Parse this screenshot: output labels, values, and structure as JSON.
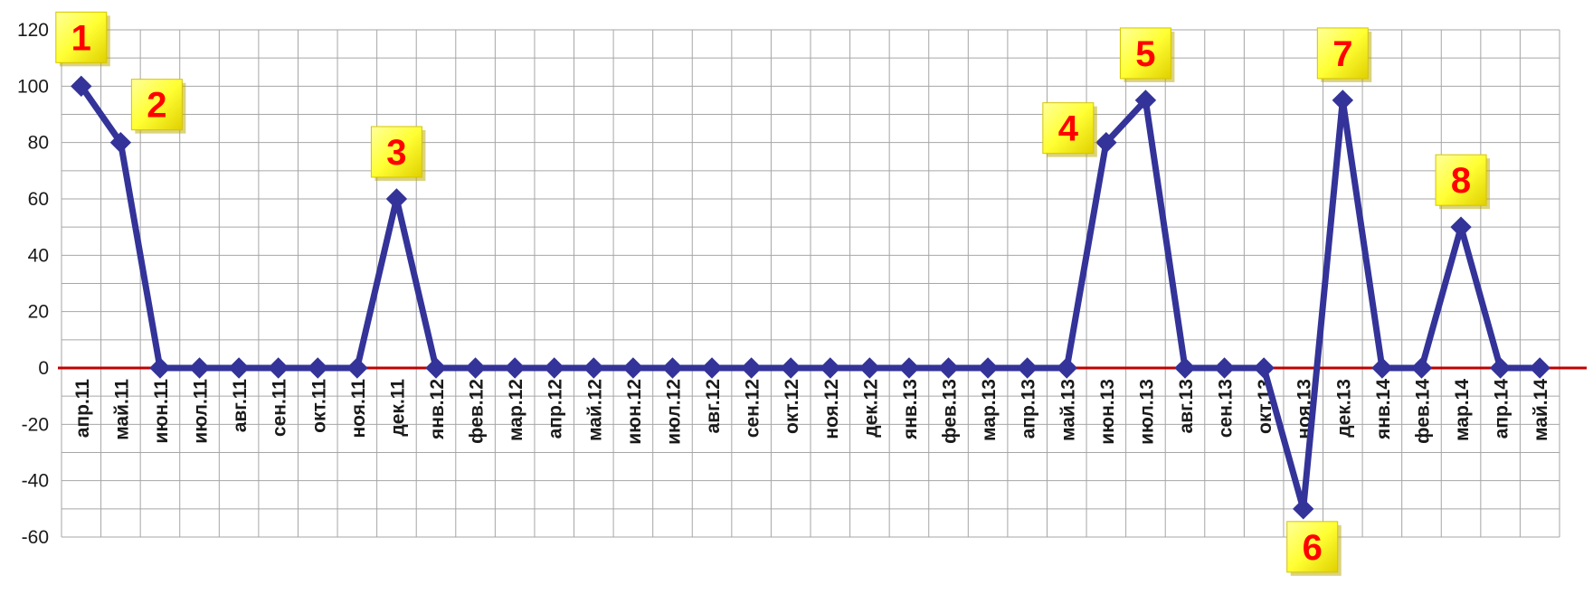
{
  "chart_data": {
    "type": "line",
    "title": "",
    "xlabel": "",
    "ylabel": "",
    "ylim": [
      -60,
      120
    ],
    "yticks": [
      120,
      100,
      80,
      60,
      40,
      20,
      0,
      -20,
      -40,
      -60
    ],
    "grid": true,
    "legend": "none",
    "categories": [
      "апр.11",
      "май.11",
      "июн.11",
      "июл.11",
      "авг.11",
      "сен.11",
      "окт.11",
      "ноя.11",
      "дек.11",
      "янв.12",
      "фев.12",
      "мар.12",
      "апр.12",
      "май.12",
      "июн.12",
      "июл.12",
      "авг.12",
      "сен.12",
      "окт.12",
      "ноя.12",
      "дек.12",
      "янв.13",
      "фев.13",
      "мар.13",
      "апр.13",
      "май.13",
      "июн.13",
      "июл.13",
      "авг.13",
      "сен.13",
      "окт.13",
      "ноя.13",
      "дек.13",
      "янв.14",
      "фев.14",
      "мар.14",
      "апр.14",
      "май.14"
    ],
    "series": [
      {
        "values": [
          100,
          80,
          0,
          0,
          0,
          0,
          0,
          0,
          60,
          0,
          0,
          0,
          0,
          0,
          0,
          0,
          0,
          0,
          0,
          0,
          0,
          0,
          0,
          0,
          0,
          0,
          80,
          95,
          0,
          0,
          0,
          -50,
          95,
          0,
          0,
          50,
          0,
          0
        ],
        "color": "#333399",
        "marker": "diamond"
      }
    ],
    "zero_line_color": "#c00000",
    "annotations": [
      {
        "label": "1",
        "index": 0
      },
      {
        "label": "2",
        "index": 1
      },
      {
        "label": "3",
        "index": 8
      },
      {
        "label": "4",
        "index": 26
      },
      {
        "label": "5",
        "index": 27
      },
      {
        "label": "6",
        "index": 31
      },
      {
        "label": "7",
        "index": 32
      },
      {
        "label": "8",
        "index": 35
      }
    ],
    "annotation_style": {
      "fill": "#ffff33",
      "text_color": "#ff0000"
    }
  }
}
